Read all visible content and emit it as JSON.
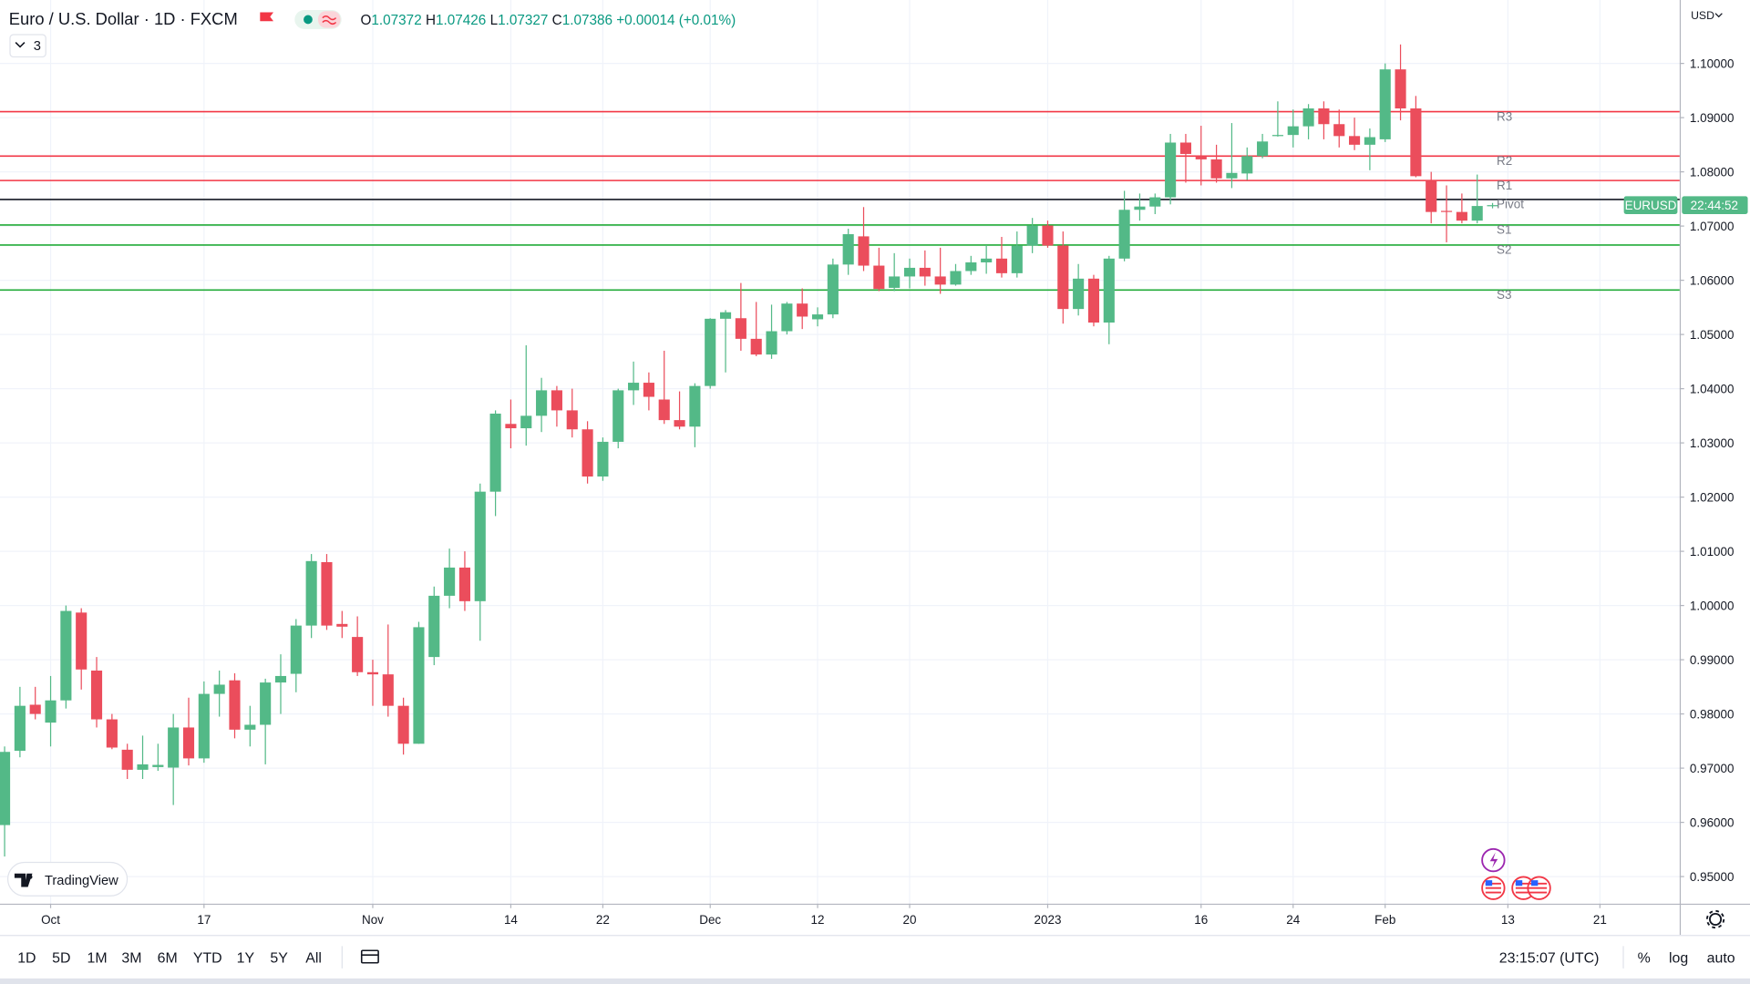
{
  "chart_data": {
    "type": "candlestick",
    "title": "Euro / U.S. Dollar · 1D · FXCM",
    "ohlc_labels": [
      "O",
      "H",
      "L",
      "C"
    ],
    "change": "+0.00014 (+0.01%)",
    "indicator_count": 3,
    "currency": "USD",
    "symbol_label": "EURUSD",
    "countdown": "22:44:52",
    "up_color": "#53b987",
    "down_color": "#eb4d5c",
    "grid": true,
    "open": [
      0.9595,
      0.9732,
      0.9817,
      0.9784,
      0.9825,
      0.9987,
      0.988,
      0.979,
      0.9734,
      0.9697,
      0.9702,
      0.9701,
      0.9775,
      0.9718,
      0.9837,
      0.9862,
      0.9771,
      0.978,
      0.9858,
      0.9874,
      0.9963,
      1.008,
      0.9966,
      0.9942,
      0.9877,
      0.9873,
      0.9815,
      0.9745,
      0.9905,
      1.0018,
      1.007,
      1.0008,
      1.021,
      1.0335,
      1.0327,
      1.035,
      1.0397,
      1.036,
      1.0325,
      1.0238,
      1.0302,
      1.0397,
      1.0411,
      1.038,
      1.0342,
      1.033,
      1.0405,
      1.0529,
      1.053,
      1.0492,
      1.0463,
      1.0506,
      1.0557,
      1.0528,
      1.0537,
      1.0629,
      1.0681,
      1.0627,
      1.0586,
      1.0607,
      1.0623,
      1.0607,
      1.0592,
      1.0617,
      1.0633,
      1.064,
      1.0613,
      1.0664,
      1.0701,
      1.0664,
      1.0547,
      1.0603,
      1.0522,
      1.064,
      1.073,
      1.0736,
      1.0753,
      1.0854,
      1.0829,
      1.0823,
      1.0788,
      1.0797,
      1.0829,
      1.0866,
      1.0868,
      1.0884,
      1.0917,
      1.0888,
      1.0866,
      1.085,
      1.086,
      1.0989,
      1.0917,
      1.0784,
      1.0728,
      1.0726,
      1.071,
      1.07372
    ],
    "high": [
      0.974,
      0.985,
      0.985,
      0.987,
      1.0,
      0.9995,
      0.9905,
      0.98,
      0.9745,
      0.976,
      0.9745,
      0.98,
      0.983,
      0.986,
      0.988,
      0.9875,
      0.9815,
      0.9865,
      0.991,
      0.9975,
      1.0095,
      1.0095,
      0.999,
      0.998,
      0.99,
      0.9965,
      0.983,
      0.997,
      1.0035,
      1.0105,
      1.01,
      1.0225,
      1.036,
      1.038,
      1.048,
      1.042,
      1.0405,
      1.04,
      1.034,
      1.031,
      1.04,
      1.045,
      1.043,
      1.047,
      1.0395,
      1.041,
      1.053,
      1.0545,
      1.0595,
      1.056,
      1.0555,
      1.056,
      1.0585,
      1.055,
      1.064,
      1.0695,
      1.0735,
      1.066,
      1.065,
      1.064,
      1.0655,
      1.066,
      1.063,
      1.0645,
      1.0665,
      1.068,
      1.069,
      1.0715,
      1.071,
      1.069,
      1.063,
      1.061,
      1.0645,
      1.0765,
      1.076,
      1.076,
      1.087,
      1.087,
      1.0885,
      1.085,
      1.089,
      1.0845,
      1.087,
      1.093,
      1.0915,
      1.0925,
      1.093,
      1.0915,
      1.09,
      1.088,
      1.1,
      1.1035,
      1.094,
      1.08,
      1.0775,
      1.076,
      1.0795,
      1.07426
    ],
    "low": [
      0.9537,
      0.972,
      0.979,
      0.974,
      0.981,
      0.9845,
      0.9775,
      0.9735,
      0.968,
      0.968,
      0.9695,
      0.9632,
      0.9705,
      0.971,
      0.9795,
      0.9755,
      0.974,
      0.9707,
      0.98,
      0.984,
      0.994,
      0.9955,
      0.994,
      0.987,
      0.9815,
      0.9795,
      0.9725,
      0.9745,
      0.989,
      0.9995,
      0.999,
      0.9935,
      1.0165,
      1.029,
      1.0295,
      1.032,
      1.033,
      1.031,
      1.0225,
      1.023,
      1.029,
      1.037,
      1.036,
      1.0335,
      1.0325,
      1.0292,
      1.04,
      1.043,
      1.047,
      1.046,
      1.0455,
      1.05,
      1.051,
      1.0515,
      1.053,
      1.061,
      1.0617,
      1.058,
      1.058,
      1.0585,
      1.059,
      1.0575,
      1.059,
      1.061,
      1.0612,
      1.0605,
      1.0605,
      1.065,
      1.066,
      1.052,
      1.0535,
      1.0515,
      1.0482,
      1.0635,
      1.071,
      1.0722,
      1.074,
      1.078,
      1.0775,
      1.078,
      1.077,
      1.0785,
      1.0825,
      1.0865,
      1.0845,
      1.086,
      1.086,
      1.0845,
      1.084,
      1.0803,
      1.0855,
      1.0895,
      1.079,
      1.0705,
      1.067,
      1.0705,
      1.0705,
      1.07327
    ],
    "close": [
      0.973,
      0.9815,
      0.98,
      0.9825,
      0.999,
      0.9882,
      0.979,
      0.9738,
      0.9697,
      0.9707,
      0.9706,
      0.9775,
      0.9718,
      0.9837,
      0.9854,
      0.9771,
      0.978,
      0.9858,
      0.987,
      0.9963,
      1.0082,
      0.9963,
      0.9961,
      0.9877,
      0.9873,
      0.9815,
      0.9745,
      0.996,
      1.0018,
      1.007,
      1.0008,
      1.021,
      1.0354,
      1.0327,
      1.035,
      1.0397,
      1.036,
      1.0325,
      1.0238,
      1.0302,
      1.0397,
      1.0411,
      1.0385,
      1.0342,
      1.033,
      1.0405,
      1.0529,
      1.0541,
      1.0492,
      1.0463,
      1.0506,
      1.0557,
      1.0533,
      1.0537,
      1.0629,
      1.0685,
      1.0627,
      1.0584,
      1.0607,
      1.0623,
      1.0607,
      1.0592,
      1.0617,
      1.0633,
      1.064,
      1.0613,
      1.0664,
      1.0701,
      1.0664,
      1.0547,
      1.0603,
      1.0522,
      1.064,
      1.073,
      1.0736,
      1.0753,
      1.0854,
      1.0833,
      1.0823,
      1.0788,
      1.0798,
      1.0829,
      1.0856,
      1.0868,
      1.0884,
      1.0917,
      1.0888,
      1.0866,
      1.085,
      1.0864,
      1.0989,
      1.0917,
      1.0792,
      1.0726,
      1.0726,
      1.071,
      1.0737,
      1.07386
    ],
    "xlim": [
      -0.3,
      109.2
    ],
    "xticks": [
      {
        "value": 3,
        "label": "Oct"
      },
      {
        "value": 13,
        "label": "17"
      },
      {
        "value": 24,
        "label": "Nov"
      },
      {
        "value": 33,
        "label": "14"
      },
      {
        "value": 39,
        "label": "22"
      },
      {
        "value": 46,
        "label": "Dec"
      },
      {
        "value": 53,
        "label": "12"
      },
      {
        "value": 59,
        "label": "20"
      },
      {
        "value": 68,
        "label": "2023"
      },
      {
        "value": 78,
        "label": "16"
      },
      {
        "value": 84,
        "label": "24"
      },
      {
        "value": 90,
        "label": "Feb"
      },
      {
        "value": 98,
        "label": "13"
      },
      {
        "value": 104,
        "label": "21"
      }
    ],
    "ylim": [
      0.945,
      1.1117
    ],
    "yticks": [
      {
        "value": 0.95,
        "label": "0.95000"
      },
      {
        "value": 0.96,
        "label": "0.96000"
      },
      {
        "value": 0.97,
        "label": "0.97000"
      },
      {
        "value": 0.98,
        "label": "0.98000"
      },
      {
        "value": 0.99,
        "label": "0.99000"
      },
      {
        "value": 1.0,
        "label": "1.00000"
      },
      {
        "value": 1.01,
        "label": "1.01000"
      },
      {
        "value": 1.02,
        "label": "1.02000"
      },
      {
        "value": 1.03,
        "label": "1.03000"
      },
      {
        "value": 1.04,
        "label": "1.04000"
      },
      {
        "value": 1.05,
        "label": "1.05000"
      },
      {
        "value": 1.06,
        "label": "1.06000"
      },
      {
        "value": 1.07,
        "label": "1.07000"
      },
      {
        "value": 1.08,
        "label": "1.08000"
      },
      {
        "value": 1.09,
        "label": "1.09000"
      },
      {
        "value": 1.1,
        "label": "1.10000"
      }
    ],
    "pivots": [
      {
        "name": "R3",
        "value": 1.0911,
        "color": "#f23645"
      },
      {
        "name": "R2",
        "value": 1.0829,
        "color": "#f23645"
      },
      {
        "name": "R1",
        "value": 1.0784,
        "color": "#f23645"
      },
      {
        "name": "Pivot",
        "value": 1.0749,
        "color": "#131722"
      },
      {
        "name": "S1",
        "value": 1.0702,
        "color": "#22ab38"
      },
      {
        "name": "S2",
        "value": 1.0665,
        "color": "#22ab38"
      },
      {
        "name": "S3",
        "value": 1.0582,
        "color": "#22ab38"
      }
    ]
  },
  "ui": {
    "brand": "TradingView",
    "timeframes": [
      "1D",
      "5D",
      "1M",
      "3M",
      "6M",
      "YTD",
      "1Y",
      "5Y",
      "All"
    ],
    "clock": "23:15:07 (UTC)",
    "scale_buttons": [
      "%",
      "log",
      "auto"
    ]
  }
}
